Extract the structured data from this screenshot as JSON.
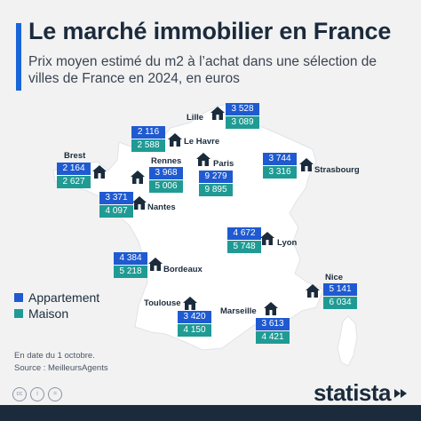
{
  "header": {
    "title": "Le marché immobilier en France",
    "subtitle": "Prix moyen estimé du m2 à l’achat dans une sélection de villes de France en 2024, en euros"
  },
  "colors": {
    "appartement": "#1f5ad1",
    "maison": "#1f9b94",
    "map_fill": "#ffffff",
    "background": "#f2f2f2",
    "accent": "#1a66d9"
  },
  "cities": {
    "lille": {
      "name": "Lille",
      "appartement": "3 528",
      "maison": "3 089"
    },
    "le_havre": {
      "name": "Le Havre",
      "appartement": "2 116",
      "maison": "2 588"
    },
    "brest": {
      "name": "Brest",
      "appartement": "2 164",
      "maison": "2 627"
    },
    "rennes": {
      "name": "Rennes",
      "appartement": "3 968",
      "maison": "5 006"
    },
    "paris": {
      "name": "Paris",
      "appartement": "9 279",
      "maison": "9 895"
    },
    "strasbourg": {
      "name": "Strasbourg",
      "appartement": "3 744",
      "maison": "3 316"
    },
    "nantes": {
      "name": "Nantes",
      "appartement": "3 371",
      "maison": "4 097"
    },
    "lyon": {
      "name": "Lyon",
      "appartement": "4 672",
      "maison": "5 748"
    },
    "bordeaux": {
      "name": "Bordeaux",
      "appartement": "4 384",
      "maison": "5 218"
    },
    "nice": {
      "name": "Nice",
      "appartement": "5 141",
      "maison": "6 034"
    },
    "toulouse": {
      "name": "Toulouse",
      "appartement": "3 420",
      "maison": "4 150"
    },
    "marseille": {
      "name": "Marseille",
      "appartement": "3 613",
      "maison": "4 421"
    }
  },
  "legend": {
    "appartement": "Appartement",
    "maison": "Maison"
  },
  "footer": {
    "note": "En date du 1 octobre.",
    "source": "Source : MeilleursAgents",
    "brand": "statista"
  },
  "icons": {
    "city_marker": "house-icon",
    "license": "creative-commons-icon",
    "brand_mark": "statista-logo-icon"
  }
}
